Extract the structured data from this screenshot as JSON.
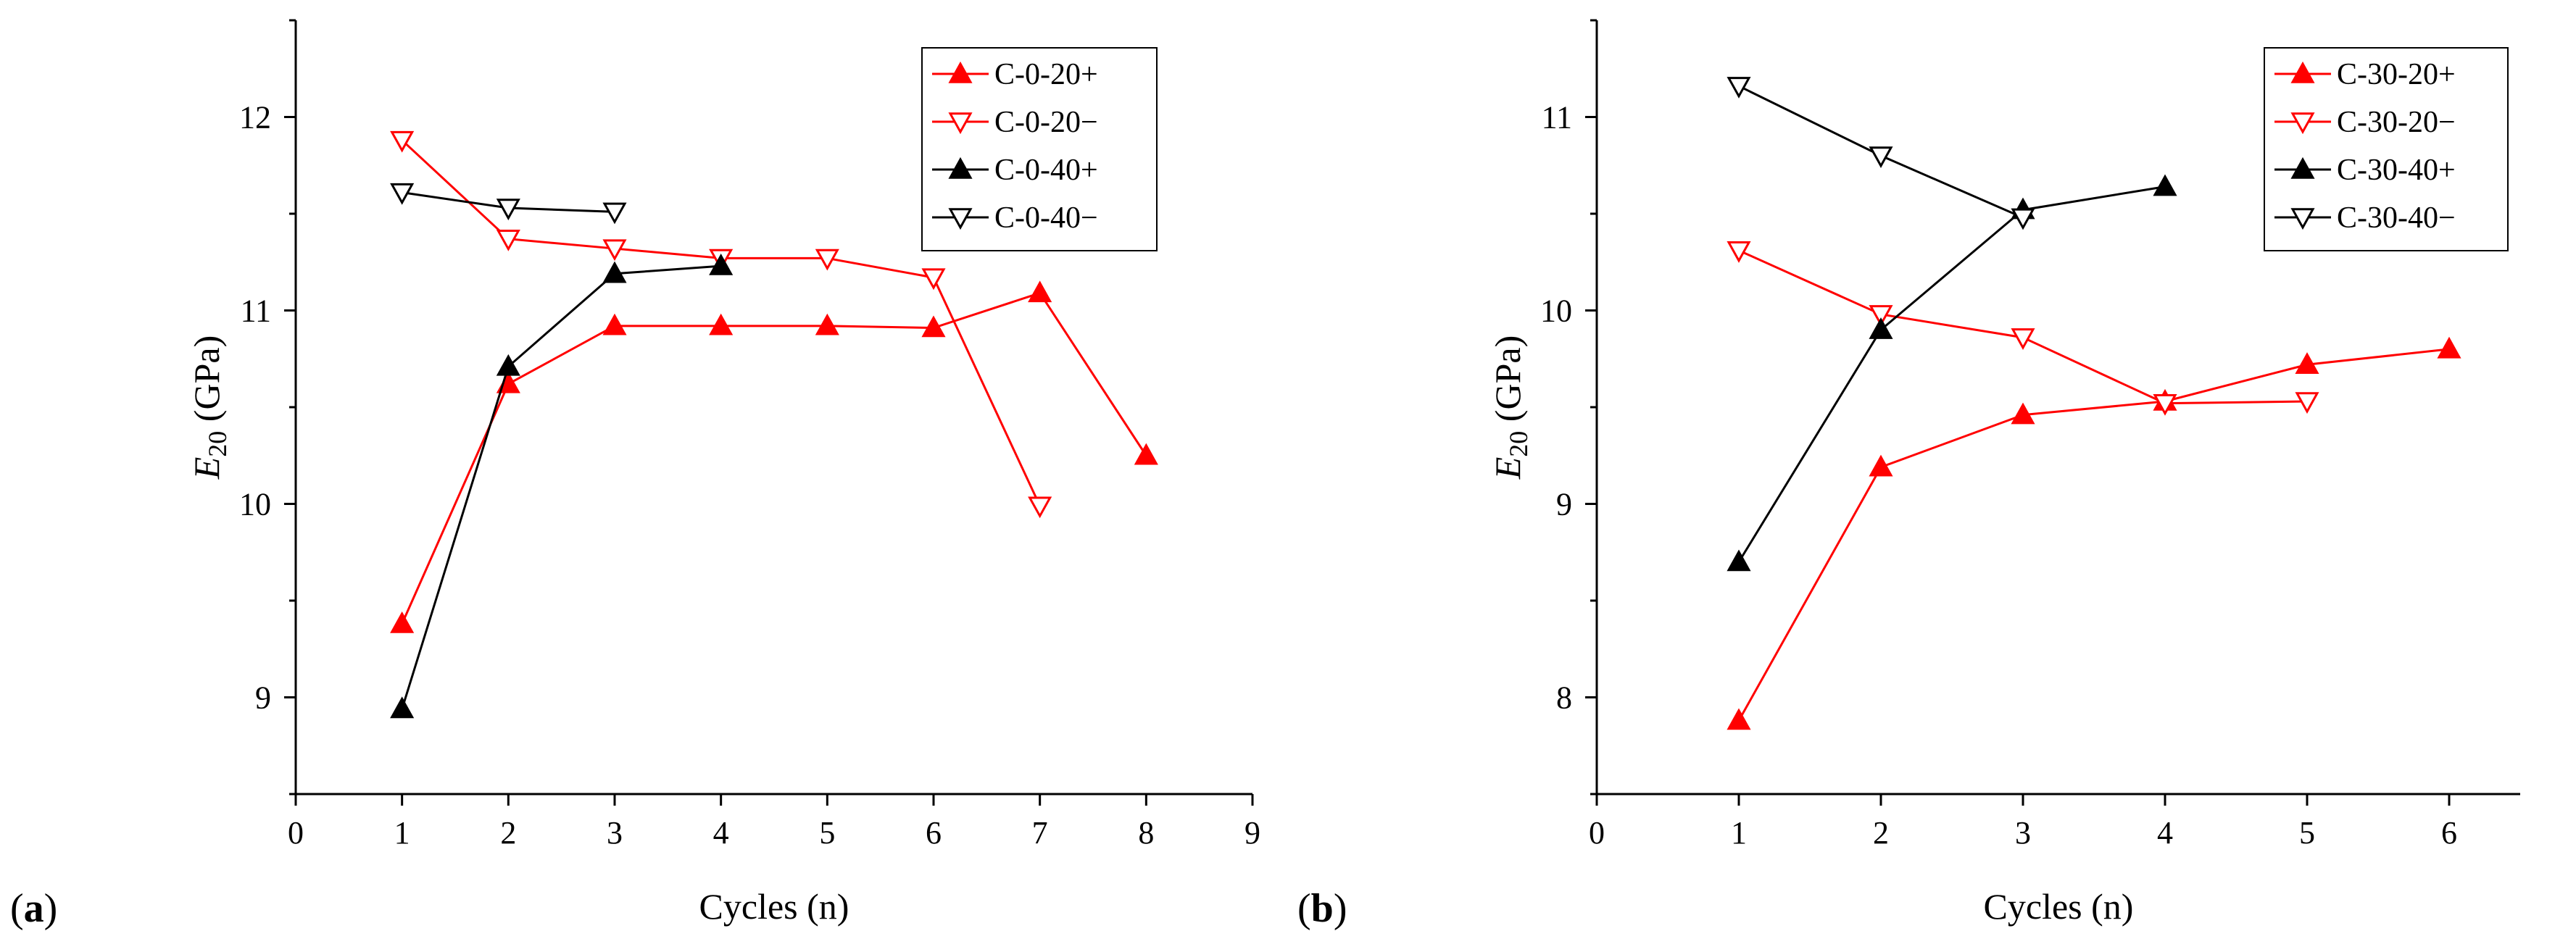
{
  "chart_data": [
    {
      "type": "line",
      "panel_label": {
        "open": "(",
        "letter": "a",
        "close": ")"
      },
      "xlabel": "Cycles (n)",
      "ylabel": {
        "symbol": "E",
        "subscript": "20",
        "unit": " (GPa)"
      },
      "xlim": [
        0,
        9
      ],
      "ylim": [
        8.5,
        12.5
      ],
      "xticks": [
        0,
        1,
        2,
        3,
        4,
        5,
        6,
        7,
        8,
        9
      ],
      "yticks": [
        9,
        10,
        11,
        12
      ],
      "legend_position": "top-right",
      "series": [
        {
          "name": "C-0-20+",
          "color": "#ff0000",
          "marker": "triangle-up-filled",
          "x": [
            1,
            2,
            3,
            4,
            5,
            6,
            7,
            8
          ],
          "y": [
            9.38,
            10.62,
            10.92,
            10.92,
            10.92,
            10.91,
            11.09,
            10.25
          ]
        },
        {
          "name": "C-0-20−",
          "color": "#ff0000",
          "marker": "triangle-down-open",
          "x": [
            1,
            2,
            3,
            4,
            5,
            6,
            7
          ],
          "y": [
            11.88,
            11.37,
            11.32,
            11.27,
            11.27,
            11.17,
            9.99
          ]
        },
        {
          "name": "C-0-40+",
          "color": "#000000",
          "marker": "triangle-up-filled",
          "x": [
            1,
            2,
            3,
            4
          ],
          "y": [
            8.94,
            10.71,
            11.19,
            11.23
          ]
        },
        {
          "name": "C-0-40−",
          "color": "#000000",
          "marker": "triangle-down-open",
          "x": [
            1,
            2,
            3
          ],
          "y": [
            11.61,
            11.53,
            11.51
          ]
        }
      ]
    },
    {
      "type": "line",
      "panel_label": {
        "open": "(",
        "letter": "b",
        "close": ")"
      },
      "xlabel": "Cycles (n)",
      "ylabel": {
        "symbol": "E",
        "subscript": "20",
        "unit": " (GPa)"
      },
      "xlim": [
        0,
        6.5
      ],
      "ylim": [
        7.5,
        11.5
      ],
      "xticks": [
        0,
        1,
        2,
        3,
        4,
        5,
        6
      ],
      "yticks": [
        8,
        9,
        10,
        11
      ],
      "legend_position": "top-right",
      "series": [
        {
          "name": "C-30-20+",
          "color": "#ff0000",
          "marker": "triangle-up-filled",
          "x": [
            1,
            2,
            3,
            4,
            5,
            6
          ],
          "y": [
            7.88,
            9.19,
            9.46,
            9.53,
            9.72,
            9.8
          ]
        },
        {
          "name": "C-30-20−",
          "color": "#ff0000",
          "marker": "triangle-down-open",
          "x": [
            1,
            2,
            3,
            4,
            5
          ],
          "y": [
            10.31,
            9.98,
            9.86,
            9.52,
            9.53
          ]
        },
        {
          "name": "C-30-40+",
          "color": "#000000",
          "marker": "triangle-up-filled",
          "x": [
            1,
            2,
            3,
            4
          ],
          "y": [
            8.7,
            9.9,
            10.52,
            10.64
          ]
        },
        {
          "name": "C-30-40−",
          "color": "#000000",
          "marker": "triangle-down-open",
          "x": [
            1,
            2,
            3
          ],
          "y": [
            11.16,
            10.8,
            10.48
          ]
        }
      ]
    }
  ]
}
